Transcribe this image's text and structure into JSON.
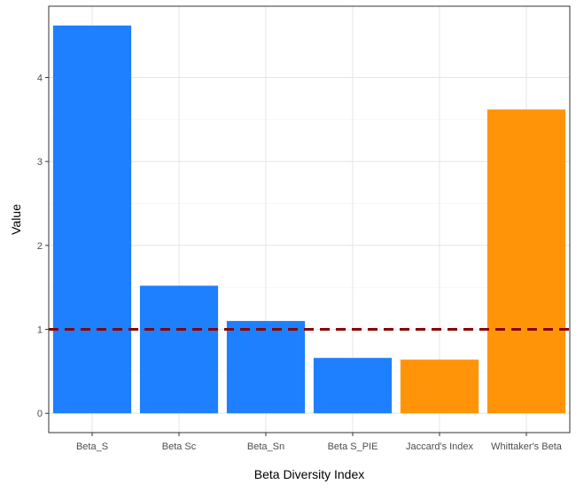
{
  "chart_data": {
    "type": "bar",
    "title": "",
    "xlabel": "Beta Diversity Index",
    "ylabel": "Value",
    "categories": [
      "Beta_S",
      "Beta Sc",
      "Beta_Sn",
      "Beta S_PIE",
      "Jaccard's Index",
      "Whittaker's Beta"
    ],
    "values": [
      4.62,
      1.52,
      1.1,
      0.66,
      0.64,
      3.62
    ],
    "bar_colors": [
      "#1E7FFF",
      "#1E7FFF",
      "#1E7FFF",
      "#1E7FFF",
      "#FF9408",
      "#FF9408"
    ],
    "yticks": [
      0,
      1,
      2,
      3,
      4
    ],
    "ylim": [
      -0.23,
      4.85
    ],
    "reference_line": {
      "y": 1,
      "style": "dashed",
      "color": "#8B0000"
    },
    "grid": true,
    "legend": "none"
  }
}
